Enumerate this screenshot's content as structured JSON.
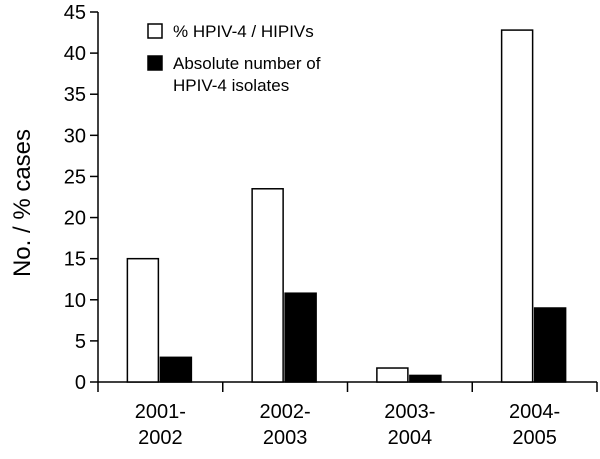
{
  "chart_data": {
    "type": "bar",
    "categories": [
      [
        "2001-",
        "2002"
      ],
      [
        "2002-",
        "2003"
      ],
      [
        "2003-",
        "2004"
      ],
      [
        "2004-",
        "2005"
      ]
    ],
    "series": [
      {
        "name": "% HPIV-4 / HIPIVs",
        "values": [
          15.0,
          23.5,
          1.7,
          42.8
        ],
        "color": "#ffffff"
      },
      {
        "name": [
          "Absolute number of",
          "HPIV-4 isolates"
        ],
        "values": [
          3.0,
          10.8,
          0.8,
          9.0
        ],
        "color": "#000000"
      }
    ],
    "ylabel": "No. / % cases",
    "ylim": [
      0,
      45
    ],
    "yticks": [
      0,
      5,
      10,
      15,
      20,
      25,
      30,
      35,
      40,
      45
    ],
    "legend_position": "top-left",
    "grid": false
  }
}
